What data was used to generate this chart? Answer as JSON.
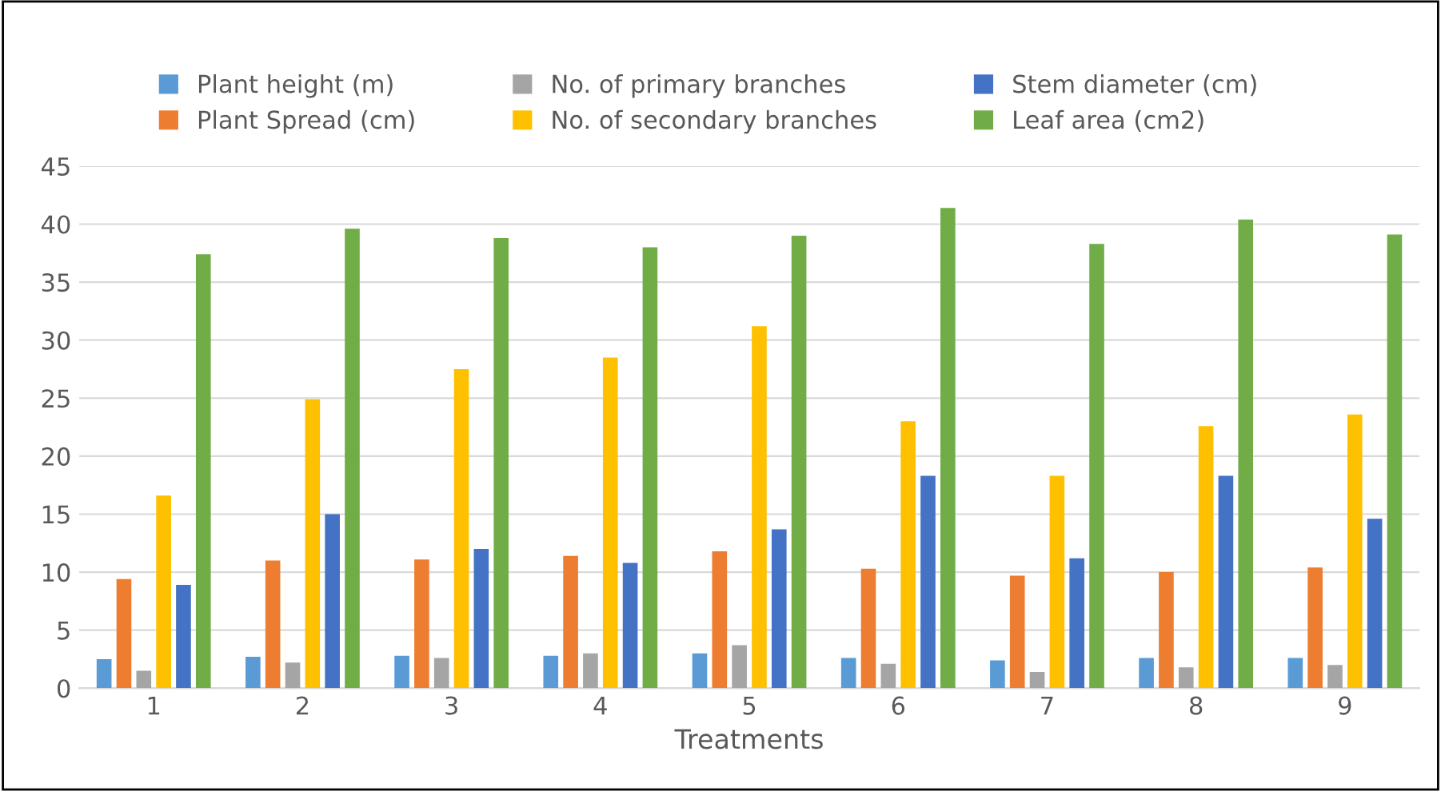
{
  "chart_data": {
    "type": "bar",
    "xlabel": "Treatments",
    "categories": [
      "1",
      "2",
      "3",
      "4",
      "5",
      "6",
      "7",
      "8",
      "9"
    ],
    "series": [
      {
        "name": "Plant height (m)",
        "color": "#5b9bd5",
        "values": [
          2.5,
          2.7,
          2.8,
          2.8,
          3.0,
          2.6,
          2.4,
          2.6,
          2.6
        ]
      },
      {
        "name": "Plant Spread (cm)",
        "color": "#ed7d31",
        "values": [
          9.4,
          11.0,
          11.1,
          11.4,
          11.8,
          10.3,
          9.7,
          10.0,
          10.4
        ]
      },
      {
        "name": "No. of primary branches",
        "color": "#a5a5a5",
        "values": [
          1.5,
          2.2,
          2.6,
          3.0,
          3.7,
          2.1,
          1.4,
          1.8,
          2.0
        ]
      },
      {
        "name": "No. of secondary branches",
        "color": "#ffc000",
        "values": [
          16.6,
          24.9,
          27.5,
          28.5,
          31.2,
          23.0,
          18.3,
          22.6,
          23.6
        ]
      },
      {
        "name": "Stem diameter (cm)",
        "color": "#4472c4",
        "values": [
          8.9,
          15.0,
          12.0,
          10.8,
          13.7,
          18.3,
          11.2,
          18.3,
          14.6
        ]
      },
      {
        "name": "Leaf area (cm2)",
        "color": "#70ad47",
        "values": [
          37.4,
          39.6,
          38.8,
          38.0,
          39.0,
          41.4,
          38.3,
          40.4,
          39.1
        ]
      }
    ],
    "ylim": [
      0,
      45
    ],
    "yticks": [
      0,
      5,
      10,
      15,
      20,
      25,
      30,
      35,
      40,
      45
    ],
    "grid": "y",
    "legend": "top"
  }
}
